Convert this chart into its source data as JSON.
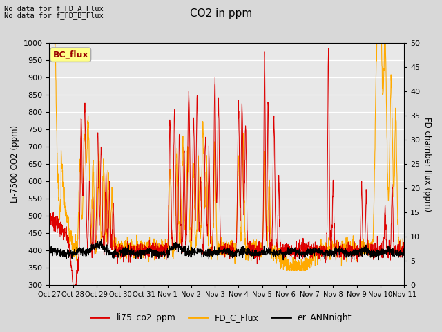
{
  "title": "CO2 in ppm",
  "ylabel_left": "Li-7500 CO2 (ppm)",
  "ylabel_right": "FD chamber flux (ppm)",
  "ylim_left": [
    300,
    1000
  ],
  "ylim_right": [
    0,
    50
  ],
  "xtick_labels": [
    "Oct 27",
    "Oct 28",
    "Oct 29",
    "Oct 30",
    "Oct 31",
    "Nov 1",
    "Nov 2",
    "Nov 3",
    "Nov 4",
    "Nov 5",
    "Nov 6",
    "Nov 7",
    "Nov 8",
    "Nov 9",
    "Nov 10",
    "Nov 11"
  ],
  "yticks_left": [
    300,
    350,
    400,
    450,
    500,
    550,
    600,
    650,
    700,
    750,
    800,
    850,
    900,
    950,
    1000
  ],
  "yticks_right": [
    0,
    5,
    10,
    15,
    20,
    25,
    30,
    35,
    40,
    45,
    50
  ],
  "color_red": "#dd0000",
  "color_orange": "#ffaa00",
  "color_black": "#000000",
  "nodata1": "No data for f_FD_A_Flux",
  "nodata2": "No data for f_FD_B_Flux",
  "bc_flux_label": "BC_flux",
  "legend_labels": [
    "li75_co2_ppm",
    "FD_C_Flux",
    "er_ANNnight"
  ],
  "fig_facecolor": "#d8d8d8",
  "ax_facecolor": "#e8e8e8",
  "n_points": 2000,
  "n_days": 15
}
